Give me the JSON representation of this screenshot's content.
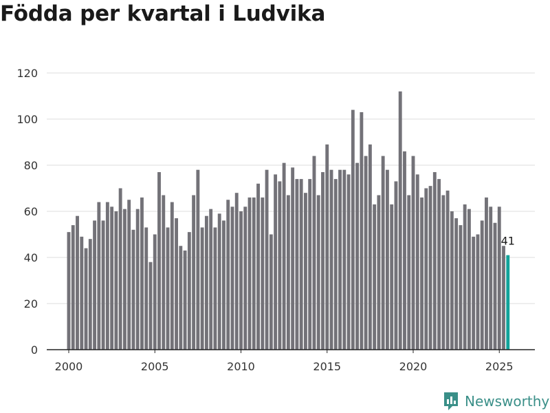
{
  "title": "Födda per kvartal i Ludvika",
  "brand": {
    "name": "Newsworthy",
    "icon": "newsworthy-logo-icon",
    "color": "#3a8f88"
  },
  "colors": {
    "bar": "#737278",
    "highlight": "#12a39a",
    "grid": "#dcdcdc",
    "axis": "#222222"
  },
  "chart_data": {
    "type": "bar",
    "title": "Födda per kvartal i Ludvika",
    "xlabel": "",
    "ylabel": "",
    "ylim": [
      0,
      120
    ],
    "yticks": [
      0,
      20,
      40,
      60,
      80,
      100,
      120
    ],
    "xticks": [
      2000,
      2005,
      2010,
      2015,
      2020,
      2025
    ],
    "x_range": [
      2000,
      2025.75
    ],
    "grid": true,
    "start_year": 2000,
    "highlight_last": true,
    "last_value_label": "41",
    "categories": [
      "2000 Q1",
      "2000 Q2",
      "2000 Q3",
      "2000 Q4",
      "2001 Q1",
      "2001 Q2",
      "2001 Q3",
      "2001 Q4",
      "2002 Q1",
      "2002 Q2",
      "2002 Q3",
      "2002 Q4",
      "2003 Q1",
      "2003 Q2",
      "2003 Q3",
      "2003 Q4",
      "2004 Q1",
      "2004 Q2",
      "2004 Q3",
      "2004 Q4",
      "2005 Q1",
      "2005 Q2",
      "2005 Q3",
      "2005 Q4",
      "2006 Q1",
      "2006 Q2",
      "2006 Q3",
      "2006 Q4",
      "2007 Q1",
      "2007 Q2",
      "2007 Q3",
      "2007 Q4",
      "2008 Q1",
      "2008 Q2",
      "2008 Q3",
      "2008 Q4",
      "2009 Q1",
      "2009 Q2",
      "2009 Q3",
      "2009 Q4",
      "2010 Q1",
      "2010 Q2",
      "2010 Q3",
      "2010 Q4",
      "2011 Q1",
      "2011 Q2",
      "2011 Q3",
      "2011 Q4",
      "2012 Q1",
      "2012 Q2",
      "2012 Q3",
      "2012 Q4",
      "2013 Q1",
      "2013 Q2",
      "2013 Q3",
      "2013 Q4",
      "2014 Q1",
      "2014 Q2",
      "2014 Q3",
      "2014 Q4",
      "2015 Q1",
      "2015 Q2",
      "2015 Q3",
      "2015 Q4",
      "2016 Q1",
      "2016 Q2",
      "2016 Q3",
      "2016 Q4",
      "2017 Q1",
      "2017 Q2",
      "2017 Q3",
      "2017 Q4",
      "2018 Q1",
      "2018 Q2",
      "2018 Q3",
      "2018 Q4",
      "2019 Q1",
      "2019 Q2",
      "2019 Q3",
      "2019 Q4",
      "2020 Q1",
      "2020 Q2",
      "2020 Q3",
      "2020 Q4",
      "2021 Q1",
      "2021 Q2",
      "2021 Q3",
      "2021 Q4",
      "2022 Q1",
      "2022 Q2",
      "2022 Q3",
      "2022 Q4",
      "2023 Q1",
      "2023 Q2",
      "2023 Q3",
      "2023 Q4",
      "2024 Q1",
      "2024 Q2",
      "2024 Q3",
      "2024 Q4",
      "2025 Q1",
      "2025 Q2",
      "2025 Q3"
    ],
    "values": [
      51,
      54,
      58,
      49,
      44,
      48,
      56,
      64,
      56,
      64,
      62,
      60,
      70,
      61,
      65,
      52,
      61,
      66,
      53,
      38,
      50,
      77,
      67,
      53,
      64,
      57,
      45,
      43,
      51,
      67,
      78,
      53,
      58,
      61,
      53,
      59,
      56,
      65,
      62,
      68,
      60,
      62,
      66,
      66,
      72,
      66,
      78,
      50,
      76,
      73,
      81,
      67,
      79,
      74,
      74,
      68,
      74,
      84,
      67,
      77,
      89,
      78,
      74,
      78,
      78,
      76,
      104,
      81,
      103,
      84,
      89,
      63,
      67,
      84,
      78,
      63,
      73,
      112,
      86,
      67,
      84,
      76,
      66,
      70,
      71,
      77,
      74,
      67,
      69,
      60,
      57,
      54,
      63,
      61,
      49,
      50,
      56,
      66,
      62,
      55,
      62,
      45,
      41
    ]
  }
}
